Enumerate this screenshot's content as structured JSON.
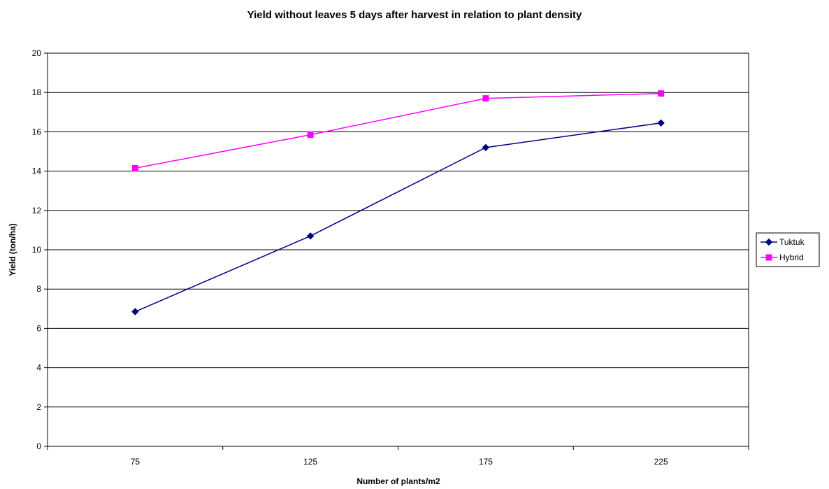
{
  "chart_data": {
    "type": "line",
    "title": "Yield without leaves 5 days after harvest in relation to plant density",
    "xlabel": "Number of plants/m2",
    "ylabel": "Yield (ton/ha)",
    "categories": [
      "75",
      "125",
      "175",
      "225"
    ],
    "ylim": [
      0,
      20
    ],
    "yticks": [
      "0",
      "2",
      "4",
      "6",
      "8",
      "10",
      "12",
      "14",
      "16",
      "18",
      "20"
    ],
    "grid": "horizontal",
    "legend_position": "right",
    "series": [
      {
        "name": "Tuktuk",
        "values": [
          6.85,
          10.7,
          15.2,
          16.45
        ],
        "color": "#000080",
        "marker": "diamond"
      },
      {
        "name": "Hybrid",
        "values": [
          14.15,
          15.85,
          17.7,
          17.95
        ],
        "color": "#ff00ff",
        "marker": "square"
      }
    ]
  }
}
